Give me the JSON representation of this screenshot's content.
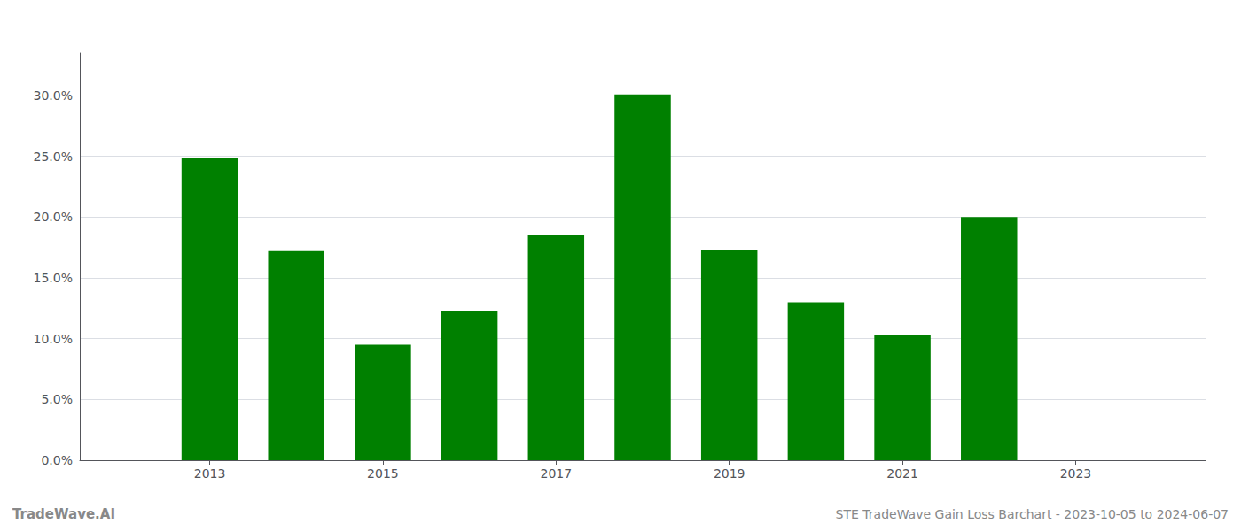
{
  "chart_data": {
    "type": "bar",
    "x": [
      2013,
      2014,
      2015,
      2016,
      2017,
      2018,
      2019,
      2020,
      2021,
      2022
    ],
    "values": [
      0.249,
      0.172,
      0.095,
      0.123,
      0.185,
      0.301,
      0.173,
      0.13,
      0.103,
      0.2
    ],
    "color": "#008000",
    "xlim": [
      2011.5,
      2024.5
    ],
    "xticks": [
      2013,
      2015,
      2017,
      2019,
      2021,
      2023
    ],
    "ylim": [
      0,
      0.335
    ],
    "yticks": [
      {
        "value": 0.0,
        "label": "0.0%"
      },
      {
        "value": 0.05,
        "label": "5.0%"
      },
      {
        "value": 0.1,
        "label": "10.0%"
      },
      {
        "value": 0.15,
        "label": "15.0%"
      },
      {
        "value": 0.2,
        "label": "20.0%"
      },
      {
        "value": 0.25,
        "label": "25.0%"
      },
      {
        "value": 0.3,
        "label": "30.0%"
      }
    ],
    "grid": true,
    "annotations": [
      "TradeWave.AI",
      "STE TradeWave Gain Loss Barchart - 2023-10-05 to 2024-06-07"
    ]
  }
}
